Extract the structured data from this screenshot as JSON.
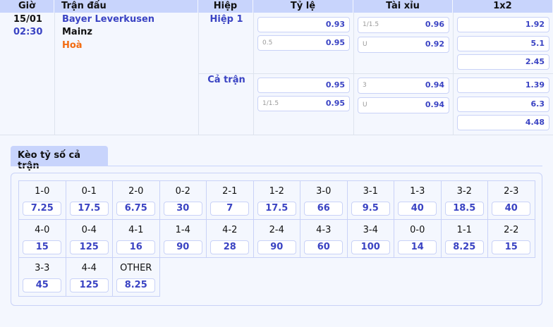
{
  "headers": [
    "Giờ",
    "Trận đấu",
    "Hiệp",
    "Tỷ lệ",
    "Tài xỉu",
    "1x2"
  ],
  "match": {
    "date": "15/01",
    "time": "02:30",
    "home": "Bayer Leverkusen",
    "away": "Mainz",
    "draw": "Hoà"
  },
  "periods": [
    {
      "name": "Hiệp 1",
      "handicap": [
        {
          "line": "",
          "odds": "0.93"
        },
        {
          "line": "0.5",
          "odds": "0.95"
        }
      ],
      "overunder": [
        {
          "line": "1/1.5",
          "odds": "0.96"
        },
        {
          "line": "U",
          "odds": "0.92"
        }
      ],
      "x12": [
        "1.92",
        "5.1",
        "2.45"
      ]
    },
    {
      "name": "Cả trận",
      "handicap": [
        {
          "line": "",
          "odds": "0.95"
        },
        {
          "line": "1/1.5",
          "odds": "0.95"
        }
      ],
      "overunder": [
        {
          "line": "3",
          "odds": "0.94"
        },
        {
          "line": "U",
          "odds": "0.94"
        }
      ],
      "x12": [
        "1.39",
        "6.3",
        "4.48"
      ]
    }
  ],
  "correct_score": {
    "title": "Kèo tỷ số cả trận",
    "items": [
      {
        "score": "1-0",
        "odds": "7.25"
      },
      {
        "score": "0-1",
        "odds": "17.5"
      },
      {
        "score": "2-0",
        "odds": "6.75"
      },
      {
        "score": "0-2",
        "odds": "30"
      },
      {
        "score": "2-1",
        "odds": "7"
      },
      {
        "score": "1-2",
        "odds": "17.5"
      },
      {
        "score": "3-0",
        "odds": "66"
      },
      {
        "score": "3-1",
        "odds": "9.5"
      },
      {
        "score": "1-3",
        "odds": "40"
      },
      {
        "score": "3-2",
        "odds": "18.5"
      },
      {
        "score": "2-3",
        "odds": "40"
      },
      {
        "score": "4-0",
        "odds": "15"
      },
      {
        "score": "0-4",
        "odds": "125"
      },
      {
        "score": "4-1",
        "odds": "16"
      },
      {
        "score": "1-4",
        "odds": "90"
      },
      {
        "score": "4-2",
        "odds": "28"
      },
      {
        "score": "2-4",
        "odds": "90"
      },
      {
        "score": "4-3",
        "odds": "60"
      },
      {
        "score": "3-4",
        "odds": "100"
      },
      {
        "score": "0-0",
        "odds": "14"
      },
      {
        "score": "1-1",
        "odds": "8.25"
      },
      {
        "score": "2-2",
        "odds": "15"
      },
      {
        "score": "3-3",
        "odds": "45"
      },
      {
        "score": "4-4",
        "odds": "125"
      },
      {
        "score": "OTHER",
        "odds": "8.25"
      }
    ]
  }
}
